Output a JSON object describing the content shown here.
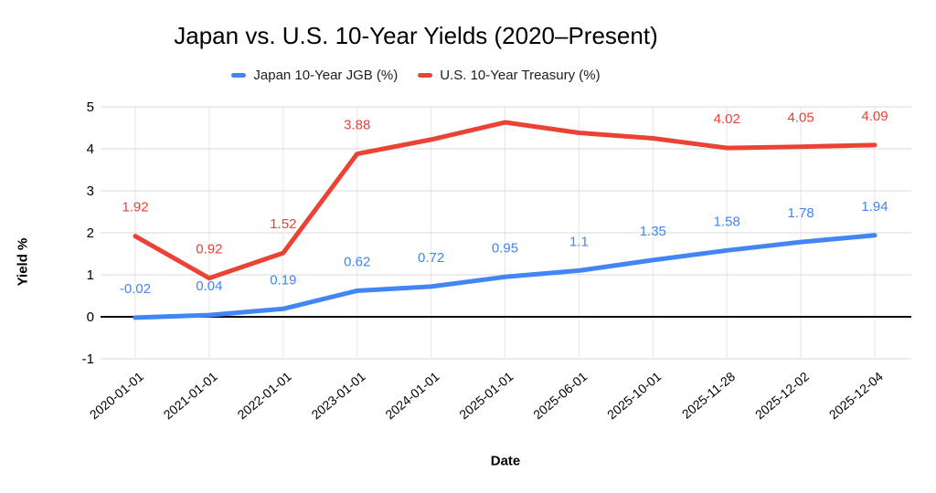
{
  "title": "Japan vs. U.S. 10-Year Yields (2020–Present)",
  "axes": {
    "x_title": "Date",
    "y_title": "Yield %"
  },
  "colors": {
    "japan_line": "#4285F4",
    "us_line": "#EA4335",
    "gridline": "#d9d9d9",
    "vertical_gridline": "#e6e6e6",
    "zero_baseline": "#000000",
    "axis_text": "#000000",
    "title_text": "#000000",
    "legend_text": "#202124"
  },
  "chart_data": {
    "type": "line",
    "title": "Japan vs. U.S. 10-Year Yields (2020–Present)",
    "xlabel": "Date",
    "ylabel": "Yield %",
    "grid": true,
    "legend_position": "top",
    "ylim": [
      -1,
      5
    ],
    "y_ticks": [
      5,
      4,
      3,
      2,
      1,
      0,
      -1
    ],
    "categories": [
      "2020-01-01",
      "2021-01-01",
      "2022-01-01",
      "2023-01-01",
      "2024-01-01",
      "2025-01-01",
      "2025-06-01",
      "2025-10-01",
      "2025-11-28",
      "2025-12-02",
      "2025-12-04"
    ],
    "series": [
      {
        "name": "Japan 10-Year JGB (%)",
        "color": "#4285F4",
        "values": [
          -0.02,
          0.04,
          0.19,
          0.62,
          0.72,
          0.95,
          1.1,
          1.35,
          1.58,
          1.78,
          1.94
        ],
        "labels": [
          "-0.02",
          "0.04",
          "0.19",
          "0.62",
          "0.72",
          "0.95",
          "1.1",
          "1.35",
          "1.58",
          "1.78",
          "1.94"
        ]
      },
      {
        "name": "U.S. 10-Year Treasury (%)",
        "color": "#EA4335",
        "values": [
          1.92,
          0.92,
          1.52,
          3.88,
          4.22,
          4.63,
          4.38,
          4.25,
          4.02,
          4.05,
          4.09
        ],
        "labels": [
          "1.92",
          "0.92",
          "1.52",
          "3.88",
          null,
          null,
          null,
          null,
          "4.02",
          "4.05",
          "4.09"
        ]
      }
    ]
  }
}
